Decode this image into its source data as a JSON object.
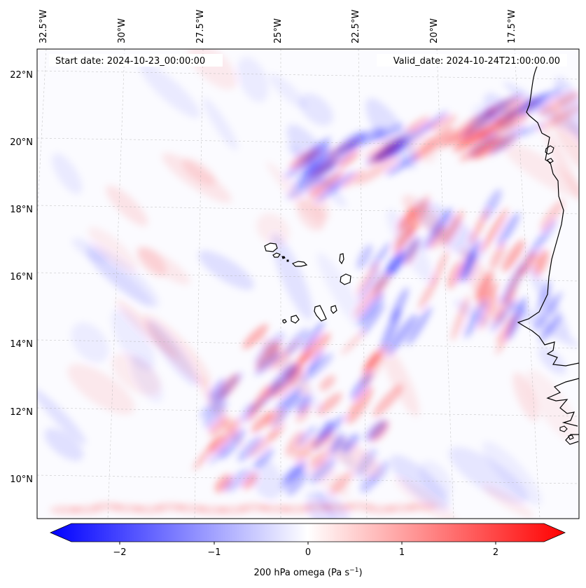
{
  "map": {
    "top_labels": [
      "32.5°W",
      "30°W",
      "27.5°W",
      "25°W",
      "22.5°W",
      "20°W",
      "17.5°W"
    ],
    "left_labels": [
      "22°N",
      "20°N",
      "18°N",
      "16°N",
      "14°N",
      "12°N",
      "10°N"
    ],
    "start_date": "Start date: 2024-10-23_00:00:00",
    "valid_date": "Valid_date: 2024-10-24T21:00:00.00",
    "lon_range": [
      -32.9,
      -15.6
    ],
    "lat_range": [
      8.9,
      22.8
    ],
    "field_colormap": "bwr",
    "colors": {
      "negative": "#0000ff",
      "zero": "#ffffff",
      "positive": "#ff0000",
      "coast": "#000000"
    }
  },
  "colorbar": {
    "ticks": [
      "−2",
      "−1",
      "0",
      "1",
      "2"
    ],
    "tick_values": [
      -2,
      -1,
      0,
      1,
      2
    ],
    "range": [
      -2.5,
      2.5
    ],
    "label": "200 hPa omega (Pa s",
    "label_sup": "−1",
    "label_end": ")"
  }
}
